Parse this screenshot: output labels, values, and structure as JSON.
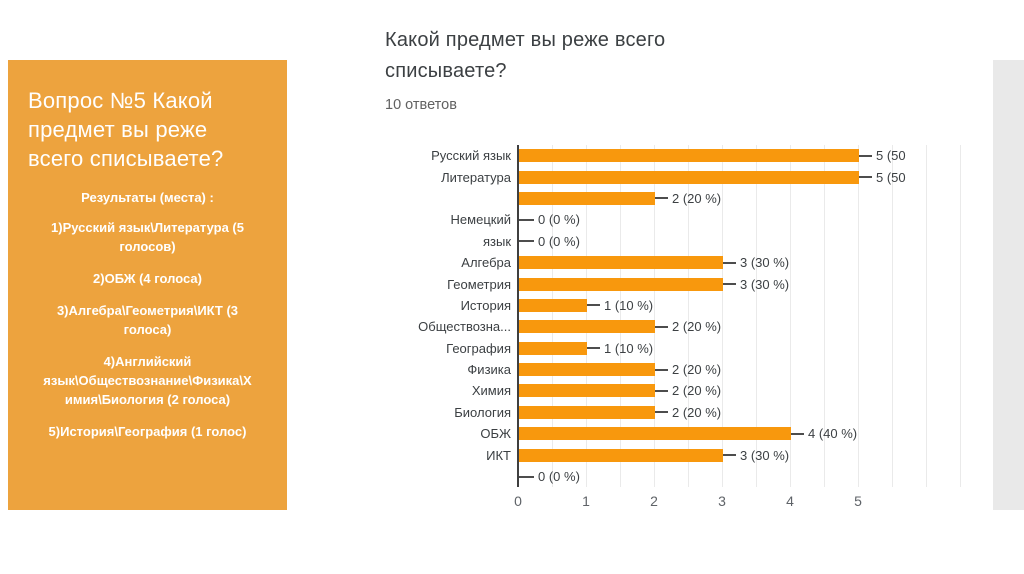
{
  "colors": {
    "panel_orange": "#EDA33E",
    "bar_orange": "#F8980D",
    "edge_gray": "#E9E9E9",
    "panel_text": "#FFFFFF",
    "chart_text": "#3C4043"
  },
  "question_panel": {
    "title_lines": [
      "Вопрос №5 Какой",
      "предмет вы реже",
      "всего списываете?"
    ],
    "results_heading": "Результаты (места) :",
    "items": [
      {
        "lines": [
          "1)Русский язык\\Литература (5",
          "голосов)"
        ]
      },
      {
        "lines": [
          "2)ОБЖ (4 голоса)"
        ]
      },
      {
        "lines": [
          "3)Алгебра\\Геометрия\\ИКТ (3",
          "голоса)"
        ]
      },
      {
        "lines": [
          "4)Английский",
          "язык\\Обществознание\\Физика\\Х",
          "имия\\Биология (2 голоса)"
        ]
      },
      {
        "lines": [
          "5)История\\География (1 голос)"
        ]
      }
    ]
  },
  "chart_data": {
    "type": "bar",
    "orientation": "horizontal",
    "title_lines": [
      "Какой предмет вы реже всего",
      "списываете?"
    ],
    "title": "Какой предмет вы реже всего списываете?",
    "subtitle": "10 ответов",
    "responses_total": 10,
    "xlim": [
      0,
      5
    ],
    "x_ticks": [
      "0",
      "1",
      "2",
      "3",
      "4",
      "5"
    ],
    "grid": "vertical lines every 0.5 units",
    "bar_color": "#F8980D",
    "rows": [
      {
        "label": "Русский язык",
        "value": 5,
        "pct": 50,
        "value_label": "5 (50"
      },
      {
        "label": "Литература",
        "value": 5,
        "pct": 50,
        "value_label": "5 (50"
      },
      {
        "label": "",
        "value": 2,
        "pct": 20,
        "value_label": "2 (20 %)"
      },
      {
        "label": "Немецкий",
        "value": 0,
        "pct": 0,
        "value_label": "0 (0 %)"
      },
      {
        "label": "язык",
        "value": 0,
        "pct": 0,
        "value_label": "0 (0 %)"
      },
      {
        "label": "Алгебра",
        "value": 3,
        "pct": 30,
        "value_label": "3 (30 %)"
      },
      {
        "label": "Геометрия",
        "value": 3,
        "pct": 30,
        "value_label": "3 (30 %)"
      },
      {
        "label": "История",
        "value": 1,
        "pct": 10,
        "value_label": "1 (10 %)"
      },
      {
        "label": "Обществозна...",
        "value": 2,
        "pct": 20,
        "value_label": "2 (20 %)"
      },
      {
        "label": "География",
        "value": 1,
        "pct": 10,
        "value_label": "1 (10 %)"
      },
      {
        "label": "Физика",
        "value": 2,
        "pct": 20,
        "value_label": "2 (20 %)"
      },
      {
        "label": "Химия",
        "value": 2,
        "pct": 20,
        "value_label": "2 (20 %)"
      },
      {
        "label": "Биология",
        "value": 2,
        "pct": 20,
        "value_label": "2 (20 %)"
      },
      {
        "label": "ОБЖ",
        "value": 4,
        "pct": 40,
        "value_label": "4 (40 %)"
      },
      {
        "label": "ИКТ",
        "value": 3,
        "pct": 30,
        "value_label": "3 (30 %)"
      },
      {
        "label": "",
        "value": 0,
        "pct": 0,
        "value_label": "0 (0 %)"
      }
    ]
  }
}
